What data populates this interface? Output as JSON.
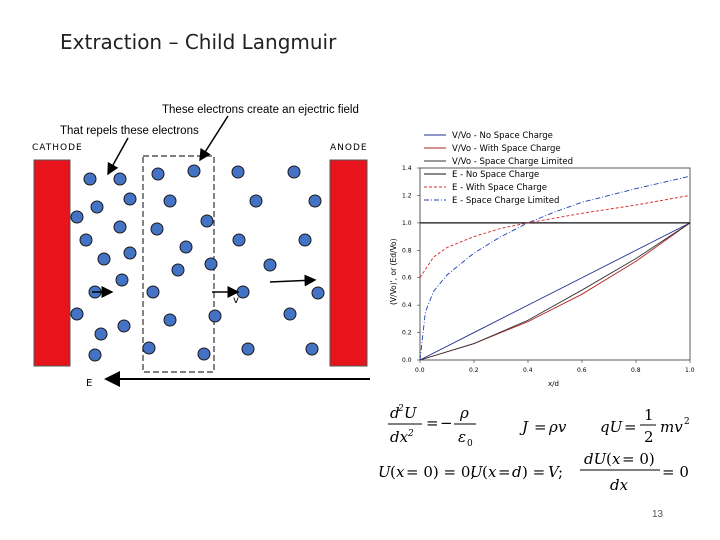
{
  "slide": {
    "title": "Extraction – Child Langmuir",
    "page_number": "13"
  },
  "diagram": {
    "caption_top": "These electrons create an ejectric field",
    "caption_second": "That repels these electrons",
    "cathode_label": "CATHODE",
    "anode_label": "ANODE",
    "velocity_label": "v",
    "field_label": "E",
    "electrode_color": "#e8141b",
    "electron_color": "#4472c4"
  },
  "chart_data": {
    "type": "line",
    "xlabel": "x/d",
    "ylabel": "(V/Vo)', or (Ed/Vo)",
    "xlim": [
      0.0,
      1.0
    ],
    "ylim": [
      0.0,
      1.4
    ],
    "x_ticks": [
      "0.0",
      "0.2",
      "0.4",
      "0.6",
      "0.8",
      "1.0"
    ],
    "y_ticks": [
      "0.0",
      "0.2",
      "0.4",
      "0.6",
      "0.8",
      "1.0",
      "1.2",
      "1.4"
    ],
    "legend": [
      "V/Vo - No Space Charge",
      "V/Vo - With Space Charge",
      "V/Vo - Space Charge Limited",
      "E - No Space Charge",
      "E - With Space Charge",
      "E - Space Charge Limited"
    ],
    "series": [
      {
        "name": "V/Vo - No Space Charge",
        "color": "#1f2d8f",
        "dash": "none",
        "x": [
          0,
          0.2,
          0.4,
          0.6,
          0.8,
          1.0
        ],
        "y": [
          0,
          0.2,
          0.4,
          0.6,
          0.8,
          1.0
        ]
      },
      {
        "name": "V/Vo - With Space Charge",
        "color": "#b22222",
        "dash": "none",
        "x": [
          0,
          0.2,
          0.4,
          0.6,
          0.8,
          1.0
        ],
        "y": [
          0,
          0.12,
          0.28,
          0.48,
          0.72,
          1.0
        ]
      },
      {
        "name": "V/Vo - Space Charge Limited",
        "color": "#333333",
        "dash": "none",
        "x": [
          0,
          0.2,
          0.4,
          0.6,
          0.8,
          1.0
        ],
        "y": [
          0,
          0.12,
          0.29,
          0.51,
          0.74,
          1.0
        ]
      },
      {
        "name": "E - No Space Charge",
        "color": "#111111",
        "dash": "none",
        "x": [
          0,
          0.2,
          0.4,
          0.6,
          0.8,
          1.0
        ],
        "y": [
          1.0,
          1.0,
          1.0,
          1.0,
          1.0,
          1.0
        ]
      },
      {
        "name": "E - With Space Charge",
        "color": "#d62728",
        "dash": "3,2",
        "x": [
          0,
          0.05,
          0.1,
          0.2,
          0.3,
          0.4,
          0.6,
          0.8,
          1.0
        ],
        "y": [
          0.6,
          0.75,
          0.82,
          0.9,
          0.96,
          1.0,
          1.07,
          1.13,
          1.2
        ]
      },
      {
        "name": "E - Space Charge Limited",
        "color": "#1f3fb4",
        "dash": "5,2,1,2",
        "x": [
          0,
          0.02,
          0.05,
          0.1,
          0.2,
          0.3,
          0.4,
          0.5,
          0.6,
          0.8,
          1.0
        ],
        "y": [
          0,
          0.35,
          0.5,
          0.62,
          0.78,
          0.9,
          1.0,
          1.08,
          1.15,
          1.25,
          1.34
        ]
      }
    ]
  }
}
